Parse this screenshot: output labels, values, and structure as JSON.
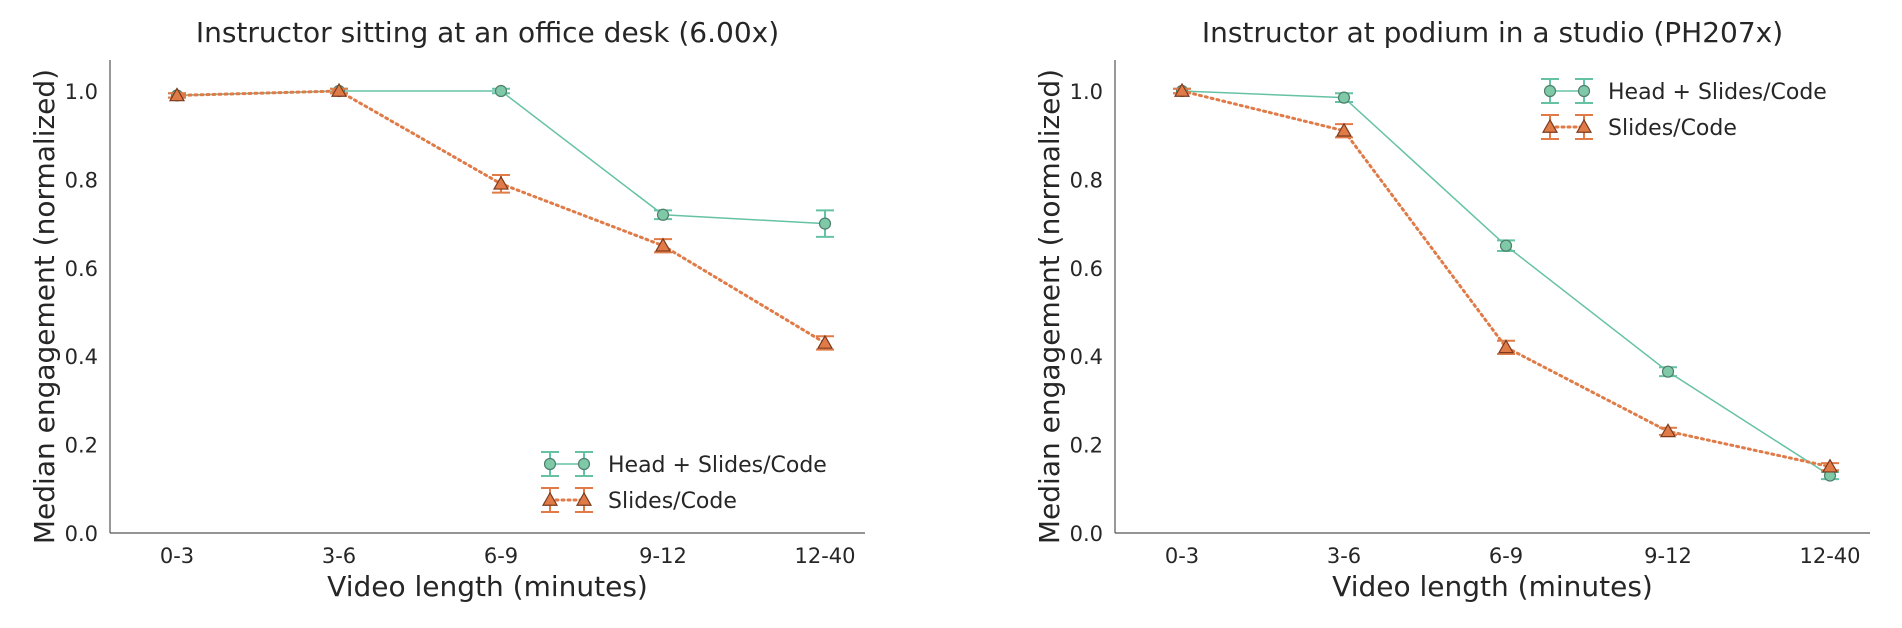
{
  "chart_data": [
    {
      "type": "line",
      "title": "Instructor sitting at an office desk (6.00x)",
      "xlabel": "Video length (minutes)",
      "ylabel": "Median engagement (normalized)",
      "categories": [
        "0-3",
        "3-6",
        "6-9",
        "9-12",
        "12-40"
      ],
      "ylim": [
        0,
        1.08
      ],
      "yticks": [
        "0.0",
        "0.2",
        "0.4",
        "0.6",
        "0.8",
        "1.0"
      ],
      "grid": false,
      "legend": "bottom-right",
      "series": [
        {
          "name": "Head + Slides/Code",
          "marker": "circle",
          "line": "solid",
          "color": "#66c2a5",
          "values": [
            0.99,
            1.0,
            1.0,
            0.72,
            0.7
          ],
          "errors": [
            0.005,
            0.005,
            0.005,
            0.01,
            0.03
          ]
        },
        {
          "name": "Slides/Code",
          "marker": "triangle",
          "line": "dotted",
          "color": "#e07b48",
          "values": [
            0.99,
            1.0,
            0.79,
            0.65,
            0.43
          ],
          "errors": [
            0.005,
            0.005,
            0.02,
            0.015,
            0.015
          ]
        }
      ]
    },
    {
      "type": "line",
      "title": "Instructor at podium in a studio (PH207x)",
      "xlabel": "Video length (minutes)",
      "ylabel": "Median engagement (normalized)",
      "categories": [
        "0-3",
        "3-6",
        "6-9",
        "9-12",
        "12-40"
      ],
      "ylim": [
        0,
        1.08
      ],
      "yticks": [
        "0.0",
        "0.2",
        "0.4",
        "0.6",
        "0.8",
        "1.0"
      ],
      "grid": false,
      "legend": "top-right",
      "series": [
        {
          "name": "Head + Slides/Code",
          "marker": "circle",
          "line": "solid",
          "color": "#66c2a5",
          "values": [
            1.0,
            0.985,
            0.65,
            0.365,
            0.13
          ],
          "errors": [
            0.005,
            0.01,
            0.012,
            0.01,
            0.008
          ]
        },
        {
          "name": "Slides/Code",
          "marker": "triangle",
          "line": "dotted",
          "color": "#e07b48",
          "values": [
            1.0,
            0.91,
            0.42,
            0.23,
            0.15
          ],
          "errors": [
            0.005,
            0.015,
            0.015,
            0.008,
            0.008
          ]
        }
      ]
    }
  ]
}
